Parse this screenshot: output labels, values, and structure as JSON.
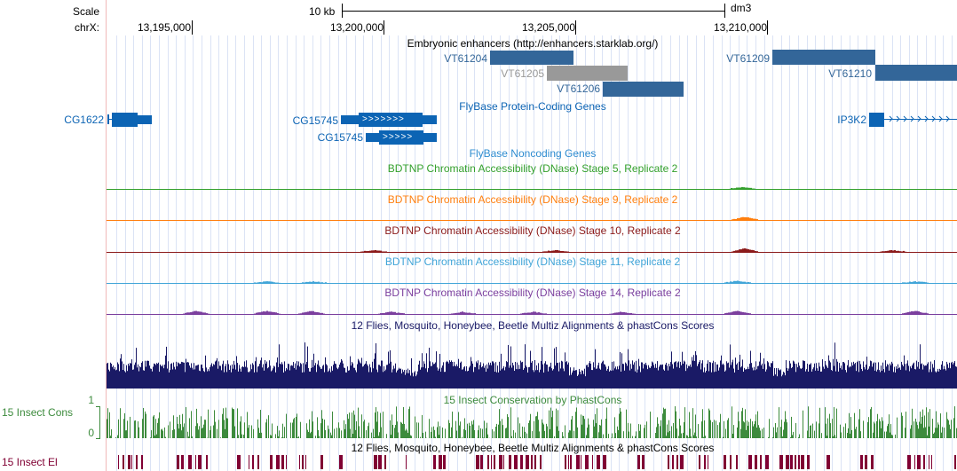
{
  "ruler": {
    "scale_label": "Scale",
    "scale_value": "10 kb",
    "assembly": "dm3",
    "chrom_label": "chrX:",
    "positions": [
      "13,195,000",
      "13,200,000",
      "13,205,000",
      "13,210,000"
    ]
  },
  "enhancers": {
    "track_title": "Embryonic enhancers (http://enhancers.starklab.org/)",
    "items": [
      {
        "name": "VT61204",
        "color": "#336699"
      },
      {
        "name": "VT61205",
        "color": "#999999"
      },
      {
        "name": "VT61206",
        "color": "#336699"
      },
      {
        "name": "VT61209",
        "color": "#336699"
      },
      {
        "name": "VT61210",
        "color": "#336699"
      }
    ]
  },
  "protein_genes": {
    "track_title": "FlyBase Protein-Coding Genes",
    "color": "#0c64b4",
    "genes": [
      "CG1622",
      "CG15745",
      "CG15745",
      "IP3K2"
    ],
    "strand_marks": [
      ">>>>>>>",
      ">>>>>"
    ]
  },
  "noncoding_genes": {
    "track_title": "FlyBase Noncoding Genes",
    "color": "#2e8cd0"
  },
  "dnase_tracks": [
    {
      "title": "BDTNP Chromatin Accessibility (DNase) Stage 5, Replicate 2",
      "color": "#33a02c"
    },
    {
      "title": "BDTNP Chromatin Accessibility (DNase) Stage 9, Replicate 2",
      "color": "#ff7f0e"
    },
    {
      "title": "BDTNP Chromatin Accessibility (DNase) Stage 10, Replicate 2",
      "color": "#8b1a1a"
    },
    {
      "title": "BDTNP Chromatin Accessibility (DNase) Stage 11, Replicate 2",
      "color": "#41a5d8"
    },
    {
      "title": "BDTNP Chromatin Accessibility (DNase) Stage 14, Replicate 2",
      "color": "#7b3f9e"
    }
  ],
  "multiz": {
    "track_title": "12 Flies, Mosquito, Honeybee, Beetle Multiz Alignments & phastCons Scores",
    "color": "#1a1a66"
  },
  "insect_cons": {
    "track_title": "15 Insect Conservation by PhastCons",
    "side_label": "15 Insect Cons",
    "axis_max": "1",
    "axis_min": "0",
    "color": "#3d8b3d"
  },
  "insect_el": {
    "track_title": "12 Flies, Mosquito, Honeybee, Beetle Multiz Alignments & phastCons Scores",
    "side_label": "15 Insect El",
    "color": "#800033"
  }
}
